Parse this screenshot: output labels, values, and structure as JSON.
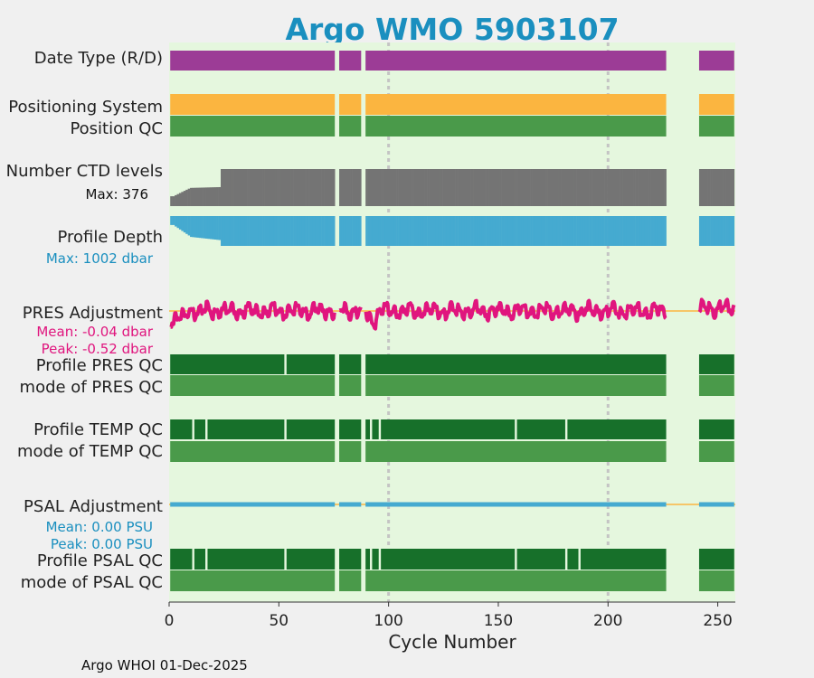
{
  "chart_data": {
    "type": "timeline",
    "title": "Argo WMO 5903107",
    "xlabel": "Cycle Number",
    "xlim": [
      0,
      258
    ],
    "xticks": [
      0,
      50,
      100,
      150,
      200,
      250
    ],
    "reference_lines_x": [
      100,
      200
    ],
    "missing_cycles": [
      76,
      77,
      88,
      89,
      227,
      228,
      229,
      230,
      231,
      232,
      233,
      234,
      235,
      236,
      237,
      238,
      239,
      240,
      241
    ],
    "rows": [
      {
        "label": "Date Type (R/D)",
        "color": "#9c3c96"
      },
      {
        "label": "Positioning System",
        "color": "#fbb540"
      },
      {
        "label": "Position QC",
        "color": "#4a9a4a"
      },
      {
        "label": "Number CTD levels",
        "note": "Max: 376",
        "note_color": "#111111",
        "color": "#747474",
        "values_note": "ramps from ~100 at cycle 1 to ~180 by cycle 10, then ~376 from cycle 24"
      },
      {
        "label": "Profile Depth",
        "note": "Max: 1002 dbar",
        "note_color": "#1a8fbf",
        "color": "#45aad0"
      },
      {
        "label": "PRES Adjustment",
        "notes": [
          "Mean: -0.04 dbar",
          "Peak: -0.52 dbar"
        ],
        "note_color": "#e0157e",
        "color": "#e0157e",
        "zero_line_color": "#fbb540"
      },
      {
        "label": "Profile PRES QC",
        "color": "#17702a",
        "breaks": [
          53
        ]
      },
      {
        "label": "mode of PRES QC",
        "color": "#4a9a4a"
      },
      {
        "label": "Profile TEMP QC",
        "color": "#17702a",
        "breaks": [
          11,
          17,
          53,
          92,
          96,
          158,
          181
        ]
      },
      {
        "label": "mode of TEMP QC",
        "color": "#4a9a4a"
      },
      {
        "label": "PSAL Adjustment",
        "notes": [
          "Mean: 0.00 PSU",
          "Peak: 0.00 PSU"
        ],
        "note_color": "#1a8fbf",
        "color": "#45aad0",
        "zero_line_color": "#fbb540"
      },
      {
        "label": "Profile PSAL QC",
        "color": "#17702a",
        "breaks": [
          11,
          17,
          53,
          92,
          96,
          158,
          181,
          187
        ]
      },
      {
        "label": "mode of PSAL QC",
        "color": "#4a9a4a"
      }
    ],
    "background_color": "#e5f7de",
    "grid": false
  },
  "footer": "Argo WHOI 01-Dec-2025"
}
